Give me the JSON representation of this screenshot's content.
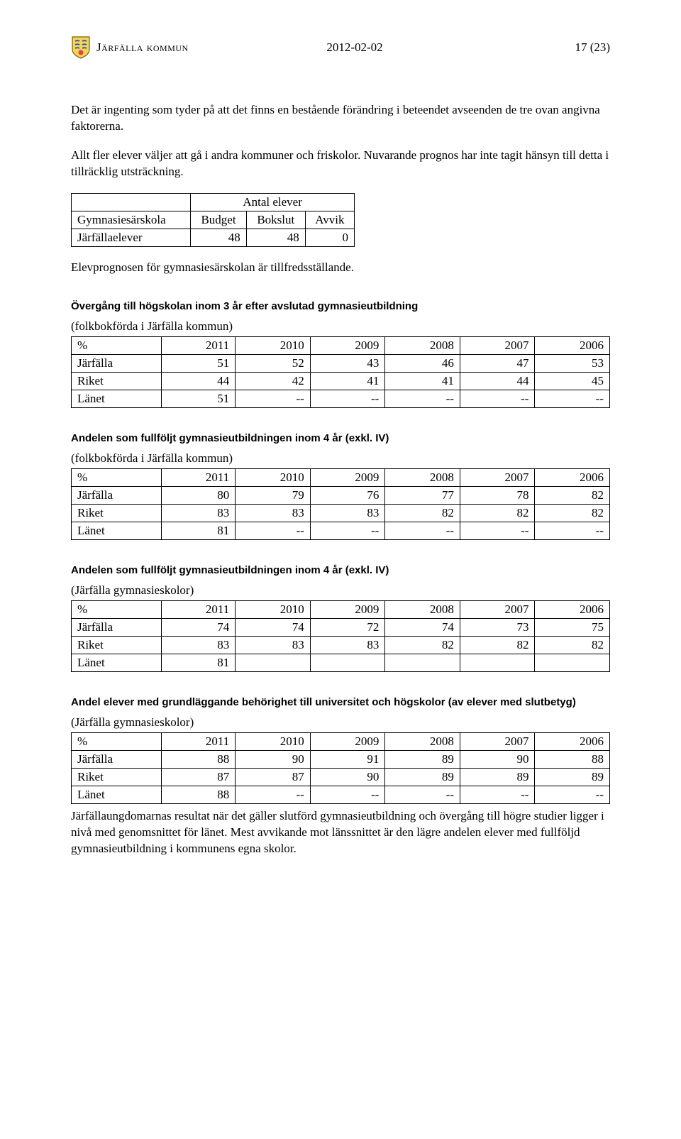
{
  "header": {
    "org_name": "Järfälla kommun",
    "date": "2012-02-02",
    "page_label": "17 (23)"
  },
  "paragraphs": {
    "p1": "Det är ingenting som tyder på att det finns en bestående förändring i beteendet avseenden de tre ovan angivna faktorerna.",
    "p2": "Allt fler elever väljer att gå i andra kommuner och friskolor.",
    "p3": "Nuvarande prognos har inte tagit hänsyn till detta i tillräcklig utsträckning.",
    "p4": "Elevprognosen för gymnasiesärskolan är tillfredsställande.",
    "p5": "Järfällaungdomarnas resultat när det gäller slutförd gymnasieutbildning och övergång till högre studier ligger i nivå med genomsnittet för länet. Mest avvikande mot länssnittet är den lägre andelen elever med fullföljd gymnasieutbildning i kommunens egna skolor."
  },
  "table_small": {
    "col_span_header": "Antal elever",
    "row_label": "Gymnasiesärskola",
    "cols": [
      "Budget",
      "Bokslut",
      "Avvik"
    ],
    "data_label": "Järfällaelever",
    "data": [
      "48",
      "48",
      "0"
    ]
  },
  "sections": [
    {
      "heading": "Övergång till högskolan inom 3 år efter avslutad gymnasieutbildning",
      "note": "(folkbokförda i Järfälla kommun)",
      "cols": [
        "%",
        "2011",
        "2010",
        "2009",
        "2008",
        "2007",
        "2006"
      ],
      "rows": [
        [
          "Järfälla",
          "51",
          "52",
          "43",
          "46",
          "47",
          "53"
        ],
        [
          "Riket",
          "44",
          "42",
          "41",
          "41",
          "44",
          "45"
        ],
        [
          "Länet",
          "51",
          "--",
          "--",
          "--",
          "--",
          "--"
        ]
      ]
    },
    {
      "heading": "Andelen som fullföljt gymnasieutbildningen inom 4 år (exkl. IV)",
      "note": "(folkbokförda i Järfälla kommun)",
      "cols": [
        "%",
        "2011",
        "2010",
        "2009",
        "2008",
        "2007",
        "2006"
      ],
      "rows": [
        [
          "Järfälla",
          "80",
          "79",
          "76",
          "77",
          "78",
          "82"
        ],
        [
          "Riket",
          "83",
          "83",
          "83",
          "82",
          "82",
          "82"
        ],
        [
          "Länet",
          "81",
          "--",
          "--",
          "--",
          "--",
          "--"
        ]
      ]
    },
    {
      "heading": "Andelen som fullföljt gymnasieutbildningen inom 4 år (exkl. IV)",
      "note": "(Järfälla gymnasieskolor)",
      "cols": [
        "%",
        "2011",
        "2010",
        "2009",
        "2008",
        "2007",
        "2006"
      ],
      "rows": [
        [
          "Järfälla",
          "74",
          "74",
          "72",
          "74",
          "73",
          "75"
        ],
        [
          "Riket",
          "83",
          "83",
          "83",
          "82",
          "82",
          "82"
        ],
        [
          "Länet",
          "81",
          "",
          "",
          "",
          "",
          ""
        ]
      ]
    },
    {
      "heading": "Andel elever med grundläggande behörighet till universitet och högskolor (av elever med slutbetyg)",
      "note": "(Järfälla gymnasieskolor)",
      "cols": [
        "%",
        "2011",
        "2010",
        "2009",
        "2008",
        "2007",
        "2006"
      ],
      "rows": [
        [
          "Järfälla",
          "88",
          "90",
          "91",
          "89",
          "90",
          "88"
        ],
        [
          "Riket",
          "87",
          "87",
          "90",
          "89",
          "89",
          "89"
        ],
        [
          "Länet",
          "88",
          "--",
          "--",
          "--",
          "--",
          "--"
        ]
      ]
    }
  ]
}
